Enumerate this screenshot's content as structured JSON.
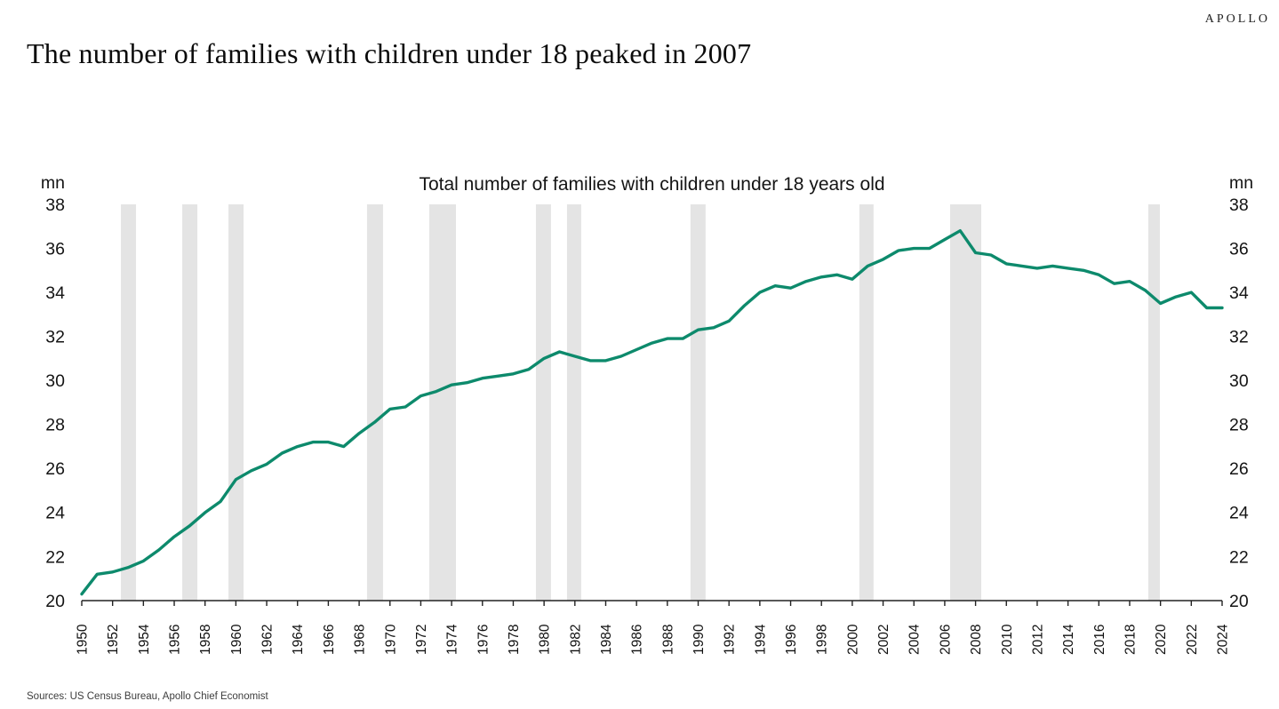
{
  "brand": "APOLLO",
  "page_title": "The number of families with children under 18 peaked in 2007",
  "source_note": "Sources: US Census Bureau, Apollo Chief Economist",
  "chart_data": {
    "type": "line",
    "title": "Total number of families with children under 18 years old",
    "unit_label": "mn",
    "ylabel": "mn",
    "ylim": [
      20,
      38
    ],
    "ytick_step": 2,
    "x_start": 1950,
    "x_end": 2024,
    "xtick_step": 2,
    "legend": "none",
    "grid": "off",
    "line_color": "#0d8a6c",
    "axis_color": "#222222",
    "recession_band_color": "#e4e4e4",
    "recession_bands": [
      [
        1952.54,
        1953.52
      ],
      [
        1956.52,
        1957.5
      ],
      [
        1959.52,
        1960.5
      ],
      [
        1968.51,
        1969.55
      ],
      [
        1972.55,
        1974.28
      ],
      [
        1979.47,
        1980.45
      ],
      [
        1981.49,
        1982.41
      ],
      [
        1989.5,
        1990.48
      ],
      [
        2000.46,
        2001.38
      ],
      [
        2006.35,
        2008.37
      ],
      [
        2019.21,
        2019.96
      ]
    ],
    "years": [
      1950,
      1951,
      1952,
      1953,
      1954,
      1955,
      1956,
      1957,
      1958,
      1959,
      1960,
      1961,
      1962,
      1963,
      1964,
      1965,
      1966,
      1967,
      1968,
      1969,
      1970,
      1971,
      1972,
      1973,
      1974,
      1975,
      1976,
      1977,
      1978,
      1979,
      1980,
      1981,
      1982,
      1983,
      1984,
      1985,
      1986,
      1987,
      1988,
      1989,
      1990,
      1991,
      1992,
      1993,
      1994,
      1995,
      1996,
      1997,
      1998,
      1999,
      2000,
      2001,
      2002,
      2003,
      2004,
      2005,
      2006,
      2007,
      2008,
      2009,
      2010,
      2011,
      2012,
      2013,
      2014,
      2015,
      2016,
      2017,
      2018,
      2019,
      2020,
      2021,
      2022,
      2023,
      2024
    ],
    "values": [
      20.3,
      21.2,
      21.3,
      21.5,
      21.8,
      22.3,
      22.9,
      23.4,
      24.0,
      24.5,
      25.5,
      25.9,
      26.2,
      26.7,
      27.0,
      27.2,
      27.2,
      27.0,
      27.6,
      28.1,
      28.7,
      28.8,
      29.3,
      29.5,
      29.8,
      29.9,
      30.1,
      30.2,
      30.3,
      30.5,
      31.0,
      31.3,
      31.1,
      30.9,
      30.9,
      31.1,
      31.4,
      31.7,
      31.9,
      31.9,
      32.3,
      32.4,
      32.7,
      33.4,
      34.0,
      34.3,
      34.2,
      34.5,
      34.7,
      34.8,
      34.6,
      35.2,
      35.5,
      35.9,
      36.0,
      36.0,
      36.4,
      36.8,
      35.8,
      35.7,
      35.3,
      35.2,
      35.1,
      35.2,
      35.1,
      35.0,
      34.8,
      34.4,
      34.5,
      34.1,
      33.5,
      33.8,
      34.0,
      33.3,
      33.3
    ]
  }
}
